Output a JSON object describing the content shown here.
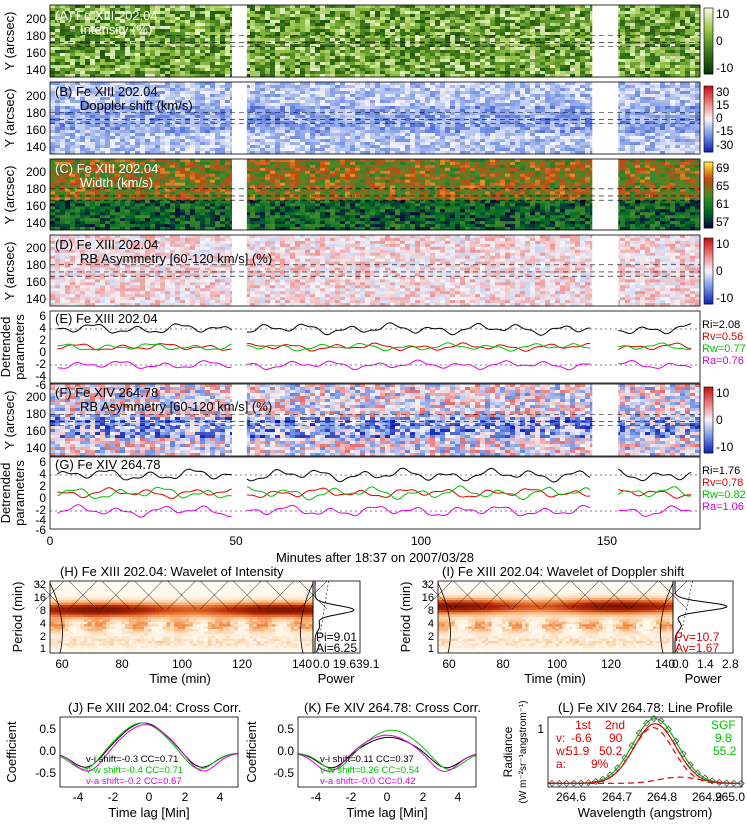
{
  "figure": {
    "x_axis_label": "Minutes after 18:37 on 2007/03/28",
    "x_ticks": [
      "0",
      "50",
      "100",
      "150"
    ],
    "y_axis_label_image": "Y (arcsec)",
    "y_axis_label_lines": [
      "Detrended",
      "parameters"
    ]
  },
  "panels": [
    {
      "id": "A",
      "title": "(A) Fe XIII 202.04",
      "subtitle": "Intensity (%)",
      "colormap": "green",
      "yticks": [
        "200",
        "180",
        "160",
        "140"
      ],
      "cbar_ticks": [
        "10",
        "0",
        "-10"
      ]
    },
    {
      "id": "B",
      "title": "(B) Fe XIII 202.04",
      "subtitle": "Doppler shift (km/s)",
      "colormap": "bluered",
      "yticks": [
        "200",
        "180",
        "160",
        "140"
      ],
      "cbar_ticks": [
        "30",
        "15",
        "0",
        "-15",
        "-30"
      ]
    },
    {
      "id": "C",
      "title": "(C) Fe XIII 202.04",
      "subtitle": "Width (km/s)",
      "colormap": "width",
      "yticks": [
        "200",
        "180",
        "160",
        "140"
      ],
      "cbar_ticks": [
        "69",
        "65",
        "61",
        "57"
      ]
    },
    {
      "id": "D",
      "title": "(D) Fe XIII 202.04",
      "subtitle": "RB Asymmetry [60-120 km/s] (%)",
      "colormap": "bluered",
      "yticks": [
        "200",
        "180",
        "160",
        "140"
      ],
      "cbar_ticks": [
        "10",
        "0",
        "-10"
      ]
    },
    {
      "id": "F",
      "title": "(F) Fe XIV 264.78",
      "subtitle": "RB Asymmetry [60-120 km/s] (%)",
      "colormap": "bluered",
      "yticks": [
        "200",
        "180",
        "160",
        "140"
      ],
      "cbar_ticks": [
        "10",
        "0",
        "-10"
      ]
    }
  ],
  "detrended": [
    {
      "id": "E",
      "title": "(E) Fe XIII 202.04",
      "yticks": [
        "6",
        "4",
        "2",
        "0",
        "-2",
        "-4",
        "-6"
      ],
      "labels": [
        {
          "text": "Ri=2.08",
          "color": "#000000"
        },
        {
          "text": "Rv=0.56",
          "color": "#e00000"
        },
        {
          "text": "Rw=0.77",
          "color": "#00c000"
        },
        {
          "text": "Ra=0.76",
          "color": "#e000e0"
        }
      ]
    },
    {
      "id": "G",
      "title": "(G) Fe XIV 264.78",
      "yticks": [
        "6",
        "4",
        "2",
        "0",
        "-2",
        "-4",
        "-6"
      ],
      "labels": [
        {
          "text": "Ri=1.76",
          "color": "#000000"
        },
        {
          "text": "Rv=0.78",
          "color": "#e00000"
        },
        {
          "text": "Rw=0.82",
          "color": "#00c000"
        },
        {
          "text": "Ra=1.06",
          "color": "#e000e0"
        }
      ]
    }
  ],
  "wavelets": [
    {
      "id": "H",
      "title": "(H) Fe XIII 202.04: Wavelet of Intensity",
      "ylabel": "Period (min)",
      "xlabel": "Time (min)",
      "yticks": [
        "32",
        "16",
        "8",
        "4",
        "2",
        "1"
      ],
      "xticks": [
        "60",
        "80",
        "100",
        "120",
        "140"
      ],
      "power_label": "Power",
      "power_ticks": [
        "0.0",
        "19.6",
        "39.1"
      ],
      "p_text": "Pi=9.01",
      "a_text": "Ai=6.25",
      "text_color": "#000000"
    },
    {
      "id": "I",
      "title": "(I) Fe XIII 202.04: Wavelet of Doppler shift",
      "ylabel": "Period (min)",
      "xlabel": "Time (min)",
      "yticks": [
        "32",
        "16",
        "8",
        "4",
        "2",
        "1"
      ],
      "xticks": [
        "60",
        "80",
        "100",
        "120",
        "140"
      ],
      "power_label": "Power",
      "power_ticks": [
        "0.0",
        "1.4",
        "2.8"
      ],
      "p_text": "Pv=10.7",
      "a_text": "Av=1.67",
      "text_color": "#e00000"
    }
  ],
  "crosscorr": [
    {
      "id": "J",
      "title": "(J) Fe XIII 202.04: Cross Corr.",
      "ylabel": "Coefficient",
      "xlabel": "Time lag [Min]",
      "yticks": [
        "0.5",
        "0.0",
        "-0.5"
      ],
      "xticks": [
        "-4",
        "-2",
        "0",
        "2",
        "4"
      ],
      "legend": [
        {
          "text": "v-i shift=-0.3 CC=0.71",
          "color": "#000000"
        },
        {
          "text": "v-w shift=-0.4 CC=0.71",
          "color": "#00c000"
        },
        {
          "text": "v-a shift=-0.2 CC=0.67",
          "color": "#e000e0"
        }
      ]
    },
    {
      "id": "K",
      "title": "(K) Fe XIV 264.78: Cross Corr.",
      "ylabel": "Coefficient",
      "xlabel": "Time lag [Min]",
      "yticks": [
        "0.5",
        "0.0",
        "-0.5"
      ],
      "xticks": [
        "-4",
        "-2",
        "0",
        "2",
        "4"
      ],
      "legend": [
        {
          "text": "v-i shift=0.11 CC=0.37",
          "color": "#000000"
        },
        {
          "text": "v-w shift=0.26 CC=0.54",
          "color": "#00c000"
        },
        {
          "text": "v-a shift=-0.0 CC=0.42",
          "color": "#e000e0"
        }
      ]
    }
  ],
  "profile": {
    "title": "(L) Fe XIV 264.78: Line Profile",
    "ylabel": "Radiance",
    "ylabel_units": "(W m⁻²sr⁻¹angstrom⁻¹)",
    "xlabel": "Wavelength (angstrom)",
    "xticks": [
      "264.6",
      "264.7",
      "264.8",
      "264.9",
      "265.0"
    ],
    "ytick": "1",
    "fit_header": [
      "1st",
      "2nd"
    ],
    "fit_rows": [
      {
        "label": "v:",
        "c1": "-6.6",
        "c2": "90"
      },
      {
        "label": "w:",
        "c1": "51.9",
        "c2": "50.2"
      },
      {
        "label": "a:",
        "c1": "",
        "c2": "9%"
      }
    ],
    "sgf_label": "SGF",
    "sgf_values": [
      "9.8",
      "55.2"
    ]
  },
  "chart_data": [
    {
      "type": "heatmap",
      "panel": "A",
      "x_range": [
        0,
        175
      ],
      "y_range": [
        130,
        210
      ],
      "colorbar_range": [
        -10,
        10
      ],
      "gaps_minutes": [
        [
          49,
          53
        ],
        [
          146,
          153
        ]
      ]
    },
    {
      "type": "heatmap",
      "panel": "B",
      "x_range": [
        0,
        175
      ],
      "y_range": [
        130,
        210
      ],
      "colorbar_range": [
        -30,
        30
      ]
    },
    {
      "type": "heatmap",
      "panel": "C",
      "x_range": [
        0,
        175
      ],
      "y_range": [
        130,
        210
      ],
      "colorbar_range": [
        57,
        69
      ]
    },
    {
      "type": "heatmap",
      "panel": "D",
      "x_range": [
        0,
        175
      ],
      "y_range": [
        130,
        210
      ],
      "colorbar_range": [
        -10,
        10
      ]
    },
    {
      "type": "line",
      "panel": "E",
      "x_range": [
        0,
        175
      ],
      "y_range": [
        -6,
        6
      ],
      "series": [
        {
          "color": "#000000",
          "offset": 3,
          "amp": 0.9,
          "seed": 3
        },
        {
          "color": "#e00000",
          "offset": 0,
          "amp": 0.6,
          "seed": 7
        },
        {
          "color": "#00c000",
          "offset": 0,
          "amp": 0.6,
          "seed": 11
        },
        {
          "color": "#e000e0",
          "offset": -3,
          "amp": 0.7,
          "seed": 19
        }
      ]
    },
    {
      "type": "heatmap",
      "panel": "F",
      "x_range": [
        0,
        175
      ],
      "y_range": [
        130,
        210
      ],
      "colorbar_range": [
        -10,
        10
      ]
    },
    {
      "type": "line",
      "panel": "G",
      "x_range": [
        0,
        175
      ],
      "y_range": [
        -6,
        6
      ],
      "series": [
        {
          "color": "#000000",
          "offset": 3,
          "amp": 1.0,
          "seed": 23
        },
        {
          "color": "#e00000",
          "offset": 0,
          "amp": 0.8,
          "seed": 29
        },
        {
          "color": "#00c000",
          "offset": 0,
          "amp": 1.0,
          "seed": 31
        },
        {
          "color": "#e000e0",
          "offset": -3,
          "amp": 0.9,
          "seed": 37
        }
      ]
    },
    {
      "type": "heatmap",
      "panel": "H",
      "x_range": [
        55,
        142
      ],
      "y_range_log2": [
        0,
        5.3
      ],
      "dominant_period_min": 9.01
    },
    {
      "type": "heatmap",
      "panel": "I",
      "x_range": [
        55,
        142
      ],
      "y_range_log2": [
        0,
        5.3
      ],
      "dominant_period_min": 10.7
    },
    {
      "type": "line",
      "panel": "J",
      "x_range": [
        -5,
        5
      ],
      "y_range": [
        -0.8,
        0.85
      ],
      "series": [
        {
          "name": "v-i",
          "peak_shift": -0.3,
          "peak": 0.71,
          "color": "#000000"
        },
        {
          "name": "v-w",
          "peak_shift": -0.4,
          "peak": 0.71,
          "color": "#00c000"
        },
        {
          "name": "v-a",
          "peak_shift": -0.2,
          "peak": 0.67,
          "color": "#e000e0"
        }
      ]
    },
    {
      "type": "line",
      "panel": "K",
      "x_range": [
        -5,
        5
      ],
      "y_range": [
        -0.8,
        0.85
      ],
      "series": [
        {
          "name": "v-i",
          "peak_shift": 0.11,
          "peak": 0.37,
          "color": "#000000"
        },
        {
          "name": "v-w",
          "peak_shift": 0.26,
          "peak": 0.54,
          "color": "#00c000"
        },
        {
          "name": "v-a",
          "peak_shift": 0.0,
          "peak": 0.42,
          "color": "#e000e0"
        }
      ]
    },
    {
      "type": "line",
      "panel": "L",
      "x_range": [
        264.52,
        265.0
      ],
      "y_range": [
        0,
        1.35
      ],
      "peak_wavelength": 264.785,
      "peak_radiance": 1.25
    }
  ]
}
